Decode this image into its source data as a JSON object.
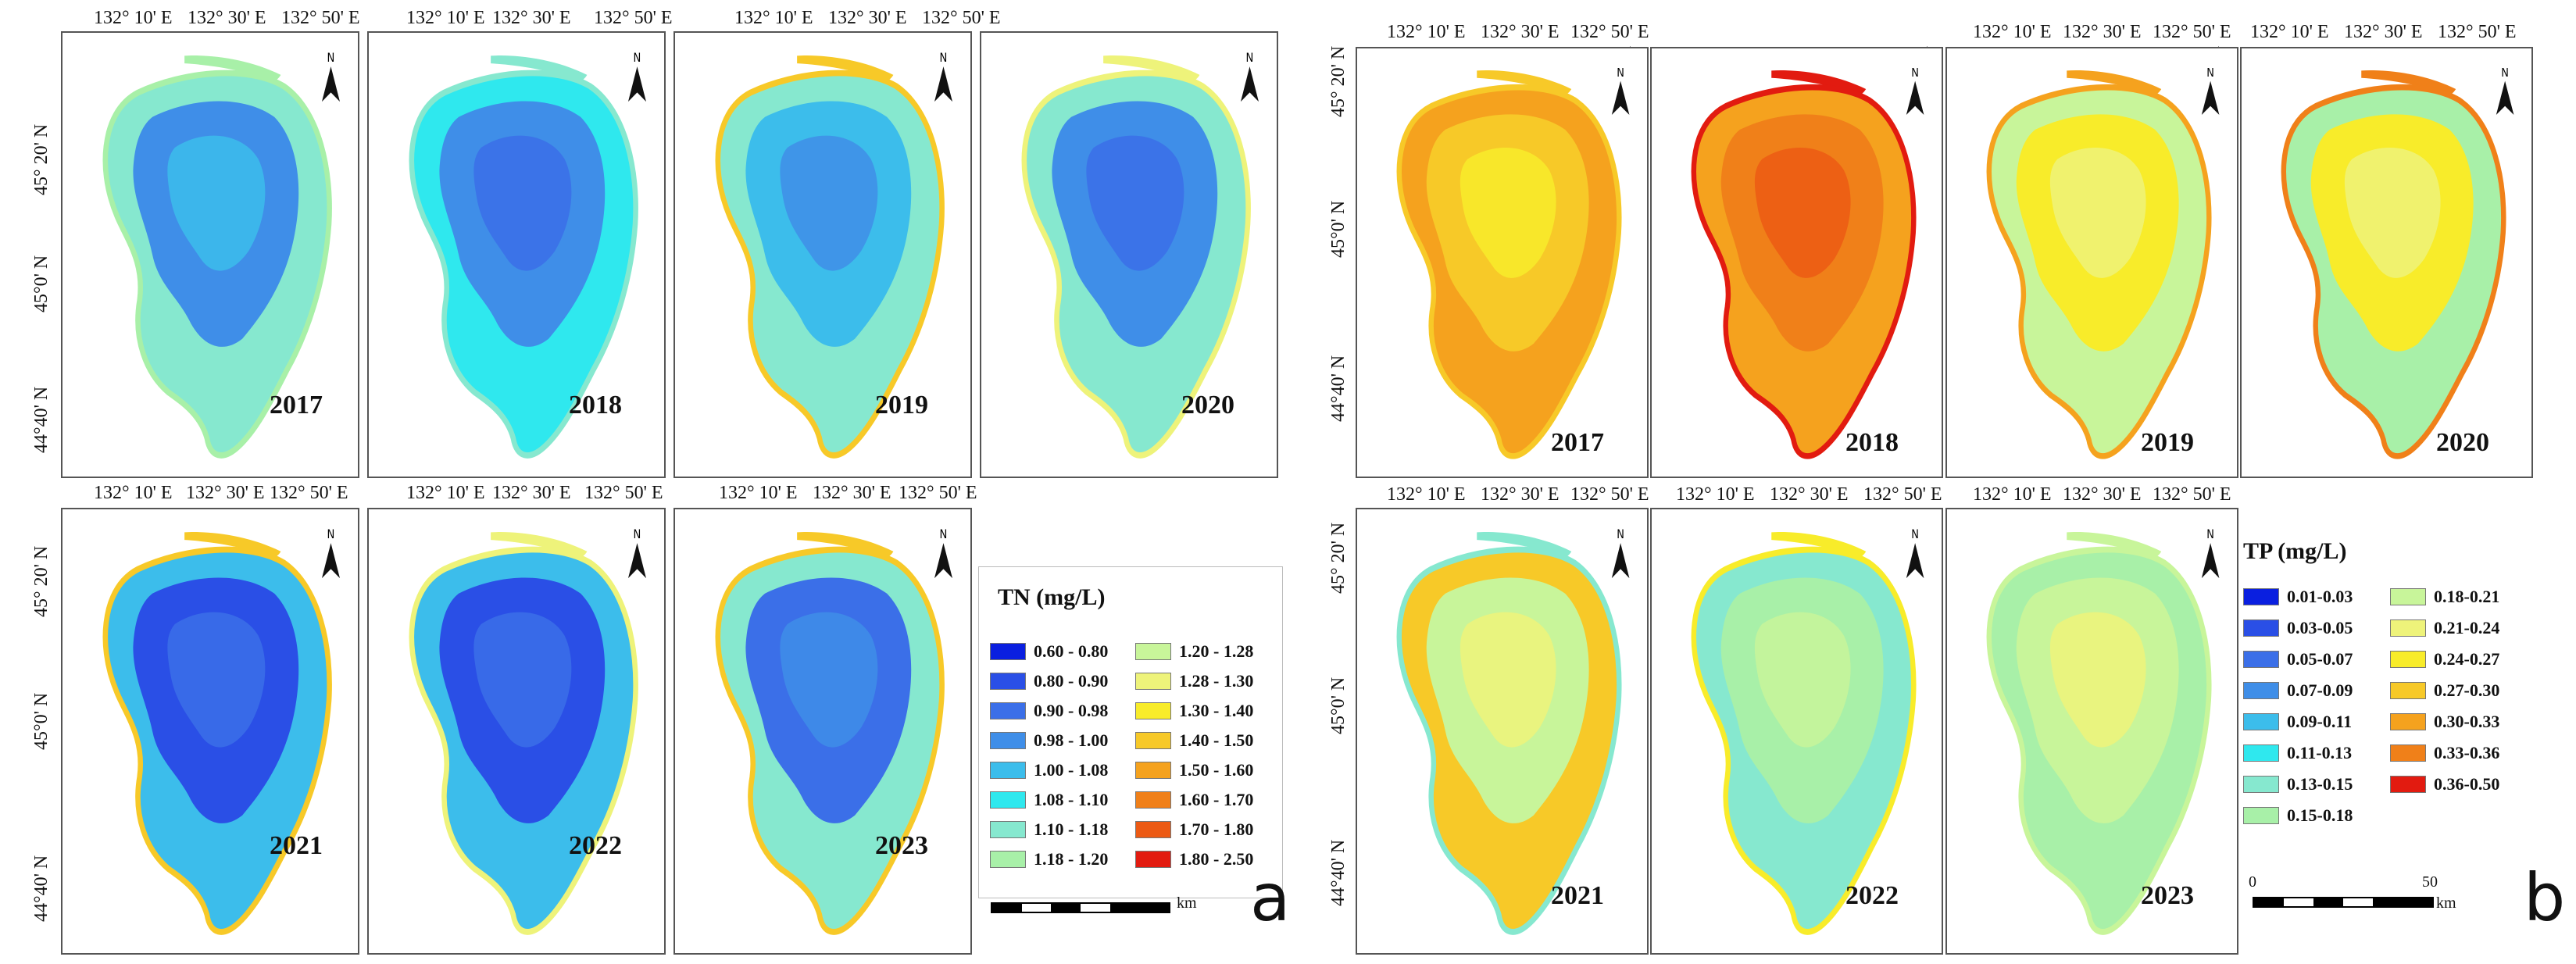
{
  "map_data": {
    "type": "choropleth-small-multiples",
    "subject": "Lake water quality maps",
    "panels": [
      {
        "id": "a",
        "label": "a",
        "variable": "TN",
        "legend_title": "TN (mg/L)",
        "lon_ticks": [
          "132° 10' E",
          "132° 30' E",
          "132° 50' E"
        ],
        "lat_ticks": [
          "45° 20' N",
          "45°0' N",
          "44°40' N"
        ],
        "scale_unit": "km",
        "years": [
          "2017",
          "2018",
          "2019",
          "2020",
          "2021",
          "2022",
          "2023"
        ],
        "classes": [
          {
            "label": "0.60 - 0.80",
            "color": "#0a1fe0"
          },
          {
            "label": "0.80 - 0.90",
            "color": "#2a4fe6"
          },
          {
            "label": "0.90 - 0.98",
            "color": "#3b6fe8"
          },
          {
            "label": "0.98 - 1.00",
            "color": "#3f8ee8"
          },
          {
            "label": "1.00 - 1.08",
            "color": "#3cbdeb"
          },
          {
            "label": "1.08 - 1.10",
            "color": "#2fe8ee"
          },
          {
            "label": "1.10 - 1.18",
            "color": "#86e8cf"
          },
          {
            "label": "1.18 - 1.20",
            "color": "#a8f0a8"
          },
          {
            "label": "1.20 - 1.28",
            "color": "#c8f59a"
          },
          {
            "label": "1.28 - 1.30",
            "color": "#eef37a"
          },
          {
            "label": "1.30 - 1.40",
            "color": "#f8ec2a"
          },
          {
            "label": "1.40 - 1.50",
            "color": "#f7c928"
          },
          {
            "label": "1.50 - 1.60",
            "color": "#f5a21e"
          },
          {
            "label": "1.60 - 1.70",
            "color": "#f08019"
          },
          {
            "label": "1.70 - 1.80",
            "color": "#ec5a14"
          },
          {
            "label": "1.80 - 2.50",
            "color": "#e21b10"
          }
        ]
      },
      {
        "id": "b",
        "label": "b",
        "variable": "TP",
        "legend_title": "TP (mg/L)",
        "lon_ticks": [
          "132° 10' E",
          "132° 30' E",
          "132° 50' E"
        ],
        "lat_ticks": [
          "45° 20' N",
          "45°0' N",
          "44°40' N"
        ],
        "scale_unit": "km",
        "scale_ticks": [
          "0",
          "50"
        ],
        "years": [
          "2017",
          "2018",
          "2019",
          "2020",
          "2021",
          "2022",
          "2023"
        ],
        "classes": [
          {
            "label": "0.01-0.03",
            "color": "#0a1fe0"
          },
          {
            "label": "0.03-0.05",
            "color": "#2a4fe6"
          },
          {
            "label": "0.05-0.07",
            "color": "#3b6fe8"
          },
          {
            "label": "0.07-0.09",
            "color": "#3f8ee8"
          },
          {
            "label": "0.09-0.11",
            "color": "#3cbdeb"
          },
          {
            "label": "0.11-0.13",
            "color": "#2fe8ee"
          },
          {
            "label": "0.13-0.15",
            "color": "#86e8cf"
          },
          {
            "label": "0.15-0.18",
            "color": "#a8f0a8"
          },
          {
            "label": "0.18-0.21",
            "color": "#c8f59a"
          },
          {
            "label": "0.21-0.24",
            "color": "#eef37a"
          },
          {
            "label": "0.24-0.27",
            "color": "#f8ec2a"
          },
          {
            "label": "0.27-0.30",
            "color": "#f7c928"
          },
          {
            "label": "0.30-0.33",
            "color": "#f5a21e"
          },
          {
            "label": "0.33-0.36",
            "color": "#f08019"
          },
          {
            "label": "0.36-0.50",
            "color": "#e21b10"
          }
        ]
      }
    ]
  },
  "map_styles": {
    "a": {
      "2017": {
        "base": "#3f8ee8",
        "mid": "#3cbdeb",
        "edge": "#86e8cf",
        "bank": "#a8f0a8"
      },
      "2018": {
        "base": "#3f8ee8",
        "mid": "#3b6fe8",
        "edge": "#2fe8ee",
        "bank": "#86e8cf"
      },
      "2019": {
        "base": "#3cbdeb",
        "mid": "#3f8ee8",
        "edge": "#86e8cf",
        "bank": "#f7c928"
      },
      "2020": {
        "base": "#3f8ee8",
        "mid": "#3b6fe8",
        "edge": "#86e8cf",
        "bank": "#eef37a"
      },
      "2021": {
        "base": "#2a4fe6",
        "mid": "#3b6fe8",
        "edge": "#3cbdeb",
        "bank": "#f7c928"
      },
      "2022": {
        "base": "#2a4fe6",
        "mid": "#3b6fe8",
        "edge": "#3cbdeb",
        "bank": "#eef37a"
      },
      "2023": {
        "base": "#3b6fe8",
        "mid": "#3f8ee8",
        "edge": "#86e8cf",
        "bank": "#f7c928"
      }
    },
    "b": {
      "2017": {
        "base": "#f7c928",
        "mid": "#f8ec2a",
        "edge": "#f5a21e",
        "bank": "#f7c928"
      },
      "2018": {
        "base": "#f08019",
        "mid": "#ec5a14",
        "edge": "#f5a21e",
        "bank": "#e21b10"
      },
      "2019": {
        "base": "#f8ec2a",
        "mid": "#eef37a",
        "edge": "#c8f59a",
        "bank": "#f5a21e"
      },
      "2020": {
        "base": "#f8ec2a",
        "mid": "#eef37a",
        "edge": "#a8f0a8",
        "bank": "#f08019"
      },
      "2021": {
        "base": "#c8f59a",
        "mid": "#eef37a",
        "edge": "#f7c928",
        "bank": "#86e8cf"
      },
      "2022": {
        "base": "#a8f0a8",
        "mid": "#c8f59a",
        "edge": "#86e8cf",
        "bank": "#f8ec2a"
      },
      "2023": {
        "base": "#c8f59a",
        "mid": "#eef37a",
        "edge": "#a8f0a8",
        "bank": "#c8f59a"
      }
    }
  }
}
